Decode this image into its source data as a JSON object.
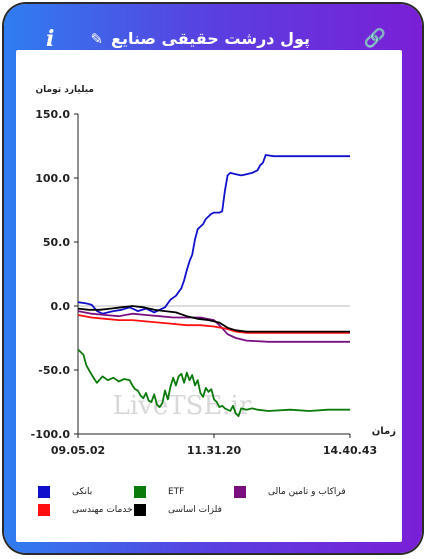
{
  "header": {
    "title": "پول درشت حقیقی صنایع",
    "info_glyph": "i",
    "pencil_glyph": "✎",
    "link_glyph": "🔗"
  },
  "colors": {
    "frame_left": "#2f7df0",
    "frame_right": "#7a1fd6"
  },
  "watermark": "LiveTSE.ir",
  "chart_data": {
    "type": "line",
    "title": "",
    "xlabel": "زمان",
    "ylabel": "میلیارد تومان",
    "ylim": [
      -100,
      150
    ],
    "yticks": [
      150,
      100,
      50,
      0,
      -50,
      -100
    ],
    "ytick_labels": [
      "150.0",
      "100.0",
      "50.0",
      "0.0",
      "-50.0",
      "-100.0"
    ],
    "xlim": [
      0,
      100
    ],
    "xticks": [
      0,
      50,
      100
    ],
    "xtick_labels": [
      "09.05.02",
      "11.31.20",
      "14.40.43"
    ],
    "grid": false,
    "zero_line": true,
    "legend_position": "bottom",
    "series": [
      {
        "name": "بانکی",
        "color": "#1010cc",
        "points": [
          [
            0,
            3
          ],
          [
            3,
            2
          ],
          [
            5,
            1
          ],
          [
            7,
            -4
          ],
          [
            9,
            -6
          ],
          [
            11,
            -5
          ],
          [
            13,
            -4
          ],
          [
            16,
            -3
          ],
          [
            19,
            -1
          ],
          [
            22,
            -4
          ],
          [
            25,
            -2
          ],
          [
            28,
            -5
          ],
          [
            30,
            -3
          ],
          [
            32,
            -1
          ],
          [
            34,
            5
          ],
          [
            36,
            8
          ],
          [
            38,
            14
          ],
          [
            39,
            20
          ],
          [
            40,
            28
          ],
          [
            41,
            35
          ],
          [
            42,
            40
          ],
          [
            43,
            52
          ],
          [
            44,
            60
          ],
          [
            45,
            62
          ],
          [
            46,
            64
          ],
          [
            47,
            68
          ],
          [
            48,
            70
          ],
          [
            49,
            72
          ],
          [
            50,
            73
          ],
          [
            52,
            73
          ],
          [
            53,
            74
          ],
          [
            54,
            90
          ],
          [
            55,
            102
          ],
          [
            56,
            104
          ],
          [
            58,
            103
          ],
          [
            60,
            102
          ],
          [
            62,
            103
          ],
          [
            64,
            104
          ],
          [
            66,
            106
          ],
          [
            67,
            110
          ],
          [
            68,
            112
          ],
          [
            69,
            118
          ],
          [
            72,
            117
          ],
          [
            80,
            117
          ],
          [
            90,
            117
          ],
          [
            100,
            117
          ]
        ]
      },
      {
        "name": "ETF",
        "color": "#0a7a0a",
        "points": [
          [
            0,
            -34
          ],
          [
            2,
            -38
          ],
          [
            3,
            -46
          ],
          [
            4,
            -50
          ],
          [
            6,
            -57
          ],
          [
            7,
            -60
          ],
          [
            9,
            -55
          ],
          [
            11,
            -58
          ],
          [
            13,
            -56
          ],
          [
            15,
            -59
          ],
          [
            17,
            -57
          ],
          [
            19,
            -58
          ],
          [
            20,
            -62
          ],
          [
            21,
            -65
          ],
          [
            22,
            -66
          ],
          [
            23,
            -70
          ],
          [
            24,
            -72
          ],
          [
            25,
            -68
          ],
          [
            26,
            -74
          ],
          [
            27,
            -75
          ],
          [
            28,
            -69
          ],
          [
            29,
            -77
          ],
          [
            30,
            -79
          ],
          [
            31,
            -76
          ],
          [
            32,
            -66
          ],
          [
            33,
            -73
          ],
          [
            34,
            -63
          ],
          [
            35,
            -56
          ],
          [
            36,
            -62
          ],
          [
            37,
            -55
          ],
          [
            38,
            -53
          ],
          [
            39,
            -60
          ],
          [
            40,
            -52
          ],
          [
            41,
            -58
          ],
          [
            42,
            -54
          ],
          [
            43,
            -62
          ],
          [
            44,
            -58
          ],
          [
            45,
            -68
          ],
          [
            46,
            -71
          ],
          [
            47,
            -64
          ],
          [
            48,
            -67
          ],
          [
            49,
            -65
          ],
          [
            50,
            -73
          ],
          [
            51,
            -75
          ],
          [
            52,
            -79
          ],
          [
            53,
            -78
          ],
          [
            54,
            -80
          ],
          [
            56,
            -82
          ],
          [
            57,
            -78
          ],
          [
            58,
            -84
          ],
          [
            59,
            -86
          ],
          [
            60,
            -80
          ],
          [
            62,
            -81
          ],
          [
            64,
            -80
          ],
          [
            66,
            -81
          ],
          [
            70,
            -82
          ],
          [
            78,
            -81
          ],
          [
            85,
            -82
          ],
          [
            92,
            -81
          ],
          [
            100,
            -81
          ]
        ]
      },
      {
        "name": "فراکاب و تامین مالی",
        "color": "#7a1080",
        "points": [
          [
            0,
            -4
          ],
          [
            5,
            -6
          ],
          [
            10,
            -7
          ],
          [
            15,
            -8
          ],
          [
            20,
            -6
          ],
          [
            25,
            -7
          ],
          [
            30,
            -8
          ],
          [
            35,
            -9
          ],
          [
            40,
            -9
          ],
          [
            45,
            -9
          ],
          [
            50,
            -11
          ],
          [
            52,
            -15
          ],
          [
            55,
            -22
          ],
          [
            58,
            -25
          ],
          [
            62,
            -27
          ],
          [
            70,
            -28
          ],
          [
            85,
            -28
          ],
          [
            100,
            -28
          ]
        ]
      },
      {
        "name": "خدمات مهندسی",
        "color": "#ff1010",
        "points": [
          [
            0,
            -7
          ],
          [
            5,
            -9
          ],
          [
            10,
            -10
          ],
          [
            15,
            -11
          ],
          [
            20,
            -11
          ],
          [
            25,
            -12
          ],
          [
            30,
            -13
          ],
          [
            35,
            -14
          ],
          [
            40,
            -15
          ],
          [
            45,
            -15
          ],
          [
            50,
            -16
          ],
          [
            55,
            -18
          ],
          [
            58,
            -20
          ],
          [
            62,
            -21
          ],
          [
            70,
            -21
          ],
          [
            85,
            -21
          ],
          [
            100,
            -21
          ]
        ]
      },
      {
        "name": "فلزات اساسی",
        "color": "#000000",
        "points": [
          [
            0,
            -2
          ],
          [
            4,
            -3
          ],
          [
            8,
            -3
          ],
          [
            12,
            -2
          ],
          [
            16,
            -1
          ],
          [
            20,
            0
          ],
          [
            24,
            -1
          ],
          [
            28,
            -3
          ],
          [
            32,
            -4
          ],
          [
            36,
            -5
          ],
          [
            40,
            -8
          ],
          [
            44,
            -10
          ],
          [
            48,
            -11
          ],
          [
            52,
            -13
          ],
          [
            55,
            -17
          ],
          [
            58,
            -19
          ],
          [
            62,
            -20
          ],
          [
            70,
            -20
          ],
          [
            85,
            -20
          ],
          [
            100,
            -20
          ]
        ]
      }
    ]
  }
}
